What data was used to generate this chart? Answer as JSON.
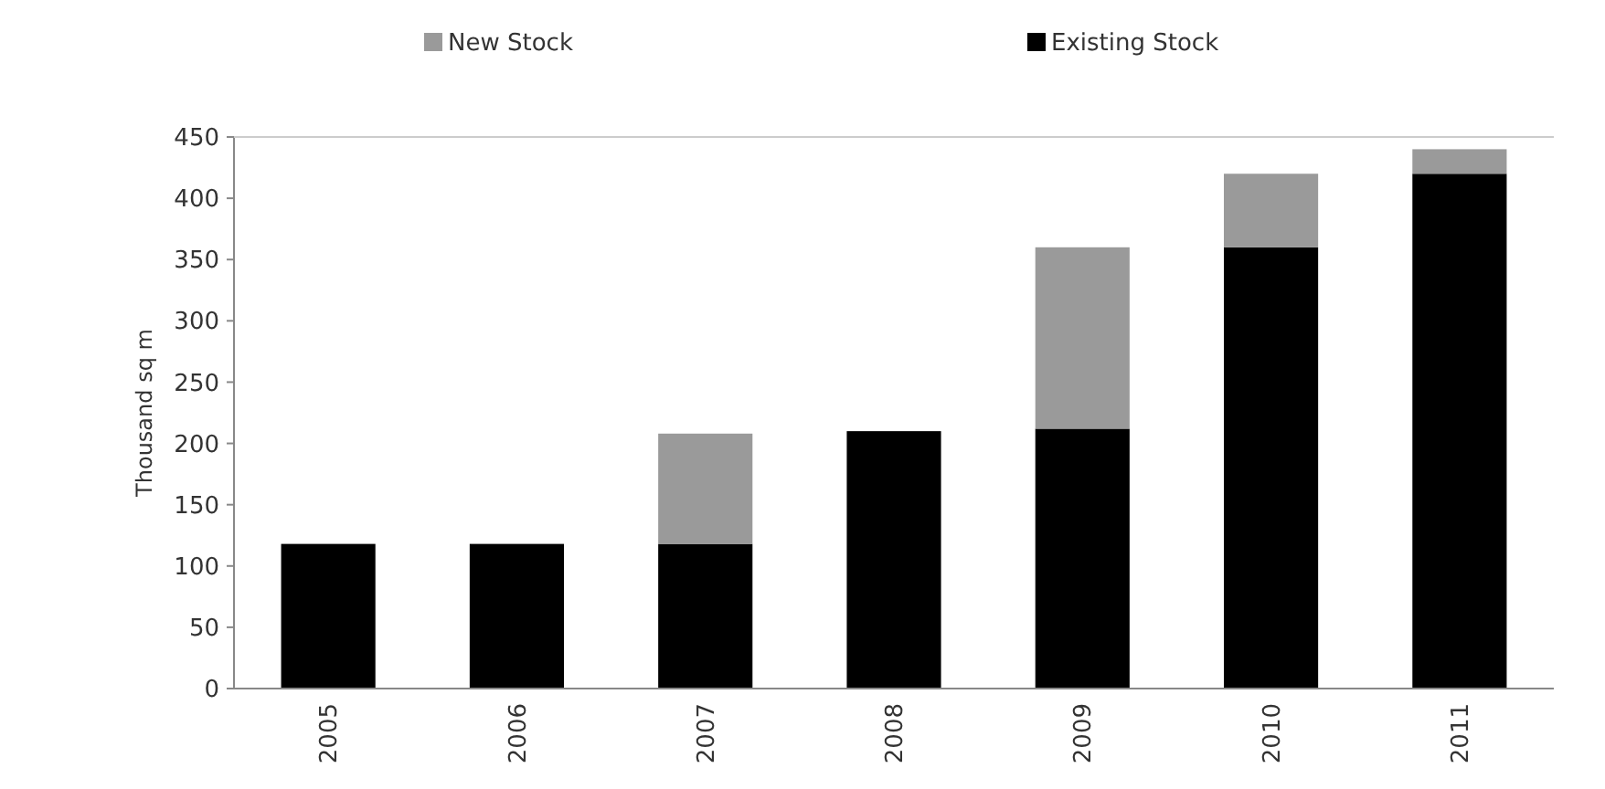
{
  "chart_data": {
    "type": "bar",
    "stacked": true,
    "ylabel": "Thousand sq m",
    "categories": [
      "2005",
      "2006",
      "2007",
      "2008",
      "2009",
      "2010",
      "2011"
    ],
    "series": [
      {
        "name": "Existing Stock",
        "color": "#000000",
        "values": [
          118,
          118,
          118,
          210,
          212,
          360,
          420
        ]
      },
      {
        "name": "New Stock",
        "color": "#9a9a9a",
        "values": [
          null,
          null,
          90,
          null,
          148,
          60,
          20
        ]
      }
    ],
    "ylim": [
      0,
      450
    ],
    "yticks": [
      0,
      50,
      100,
      150,
      200,
      250,
      300,
      350,
      400,
      450
    ],
    "legend": "top"
  }
}
